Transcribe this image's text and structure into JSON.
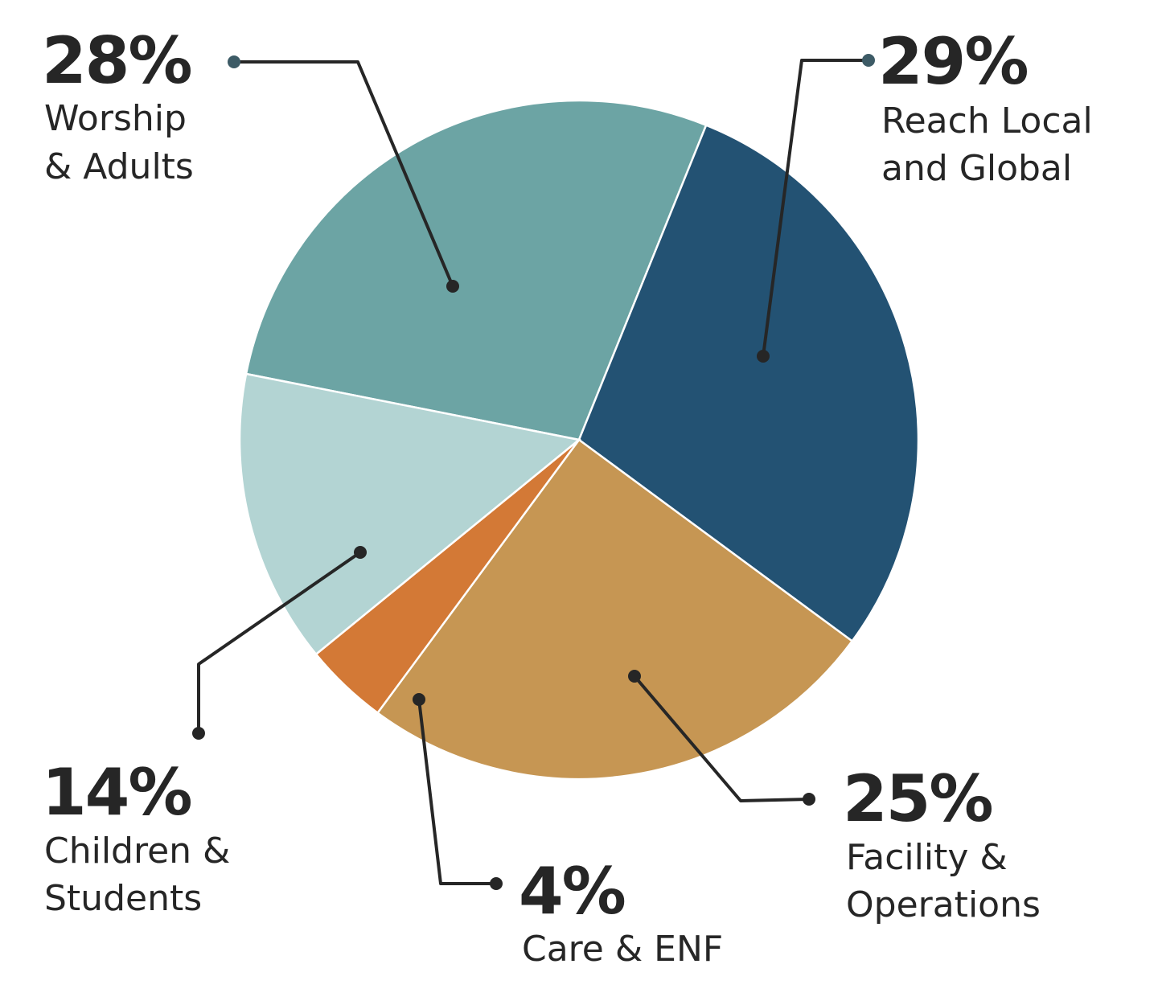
{
  "chart_data": {
    "type": "pie",
    "title": "",
    "slices": [
      {
        "key": "worship",
        "value": 28,
        "value_label": "28%",
        "label_lines": [
          "Worship",
          "& Adults"
        ],
        "color": "#6ca4a4"
      },
      {
        "key": "reach",
        "value": 29,
        "value_label": "29%",
        "label_lines": [
          "Reach Local",
          "and Global"
        ],
        "color": "#235273"
      },
      {
        "key": "facility",
        "value": 25,
        "value_label": "25%",
        "label_lines": [
          "Facility &",
          "Operations"
        ],
        "color": "#c69653"
      },
      {
        "key": "care",
        "value": 4,
        "value_label": "4%",
        "label_lines": [
          "Care & ENF"
        ],
        "color": "#d37936"
      },
      {
        "key": "children",
        "value": 14,
        "value_label": "14%",
        "label_lines": [
          "Children &",
          "Students"
        ],
        "color": "#b3d4d3"
      }
    ],
    "legend": "none"
  }
}
